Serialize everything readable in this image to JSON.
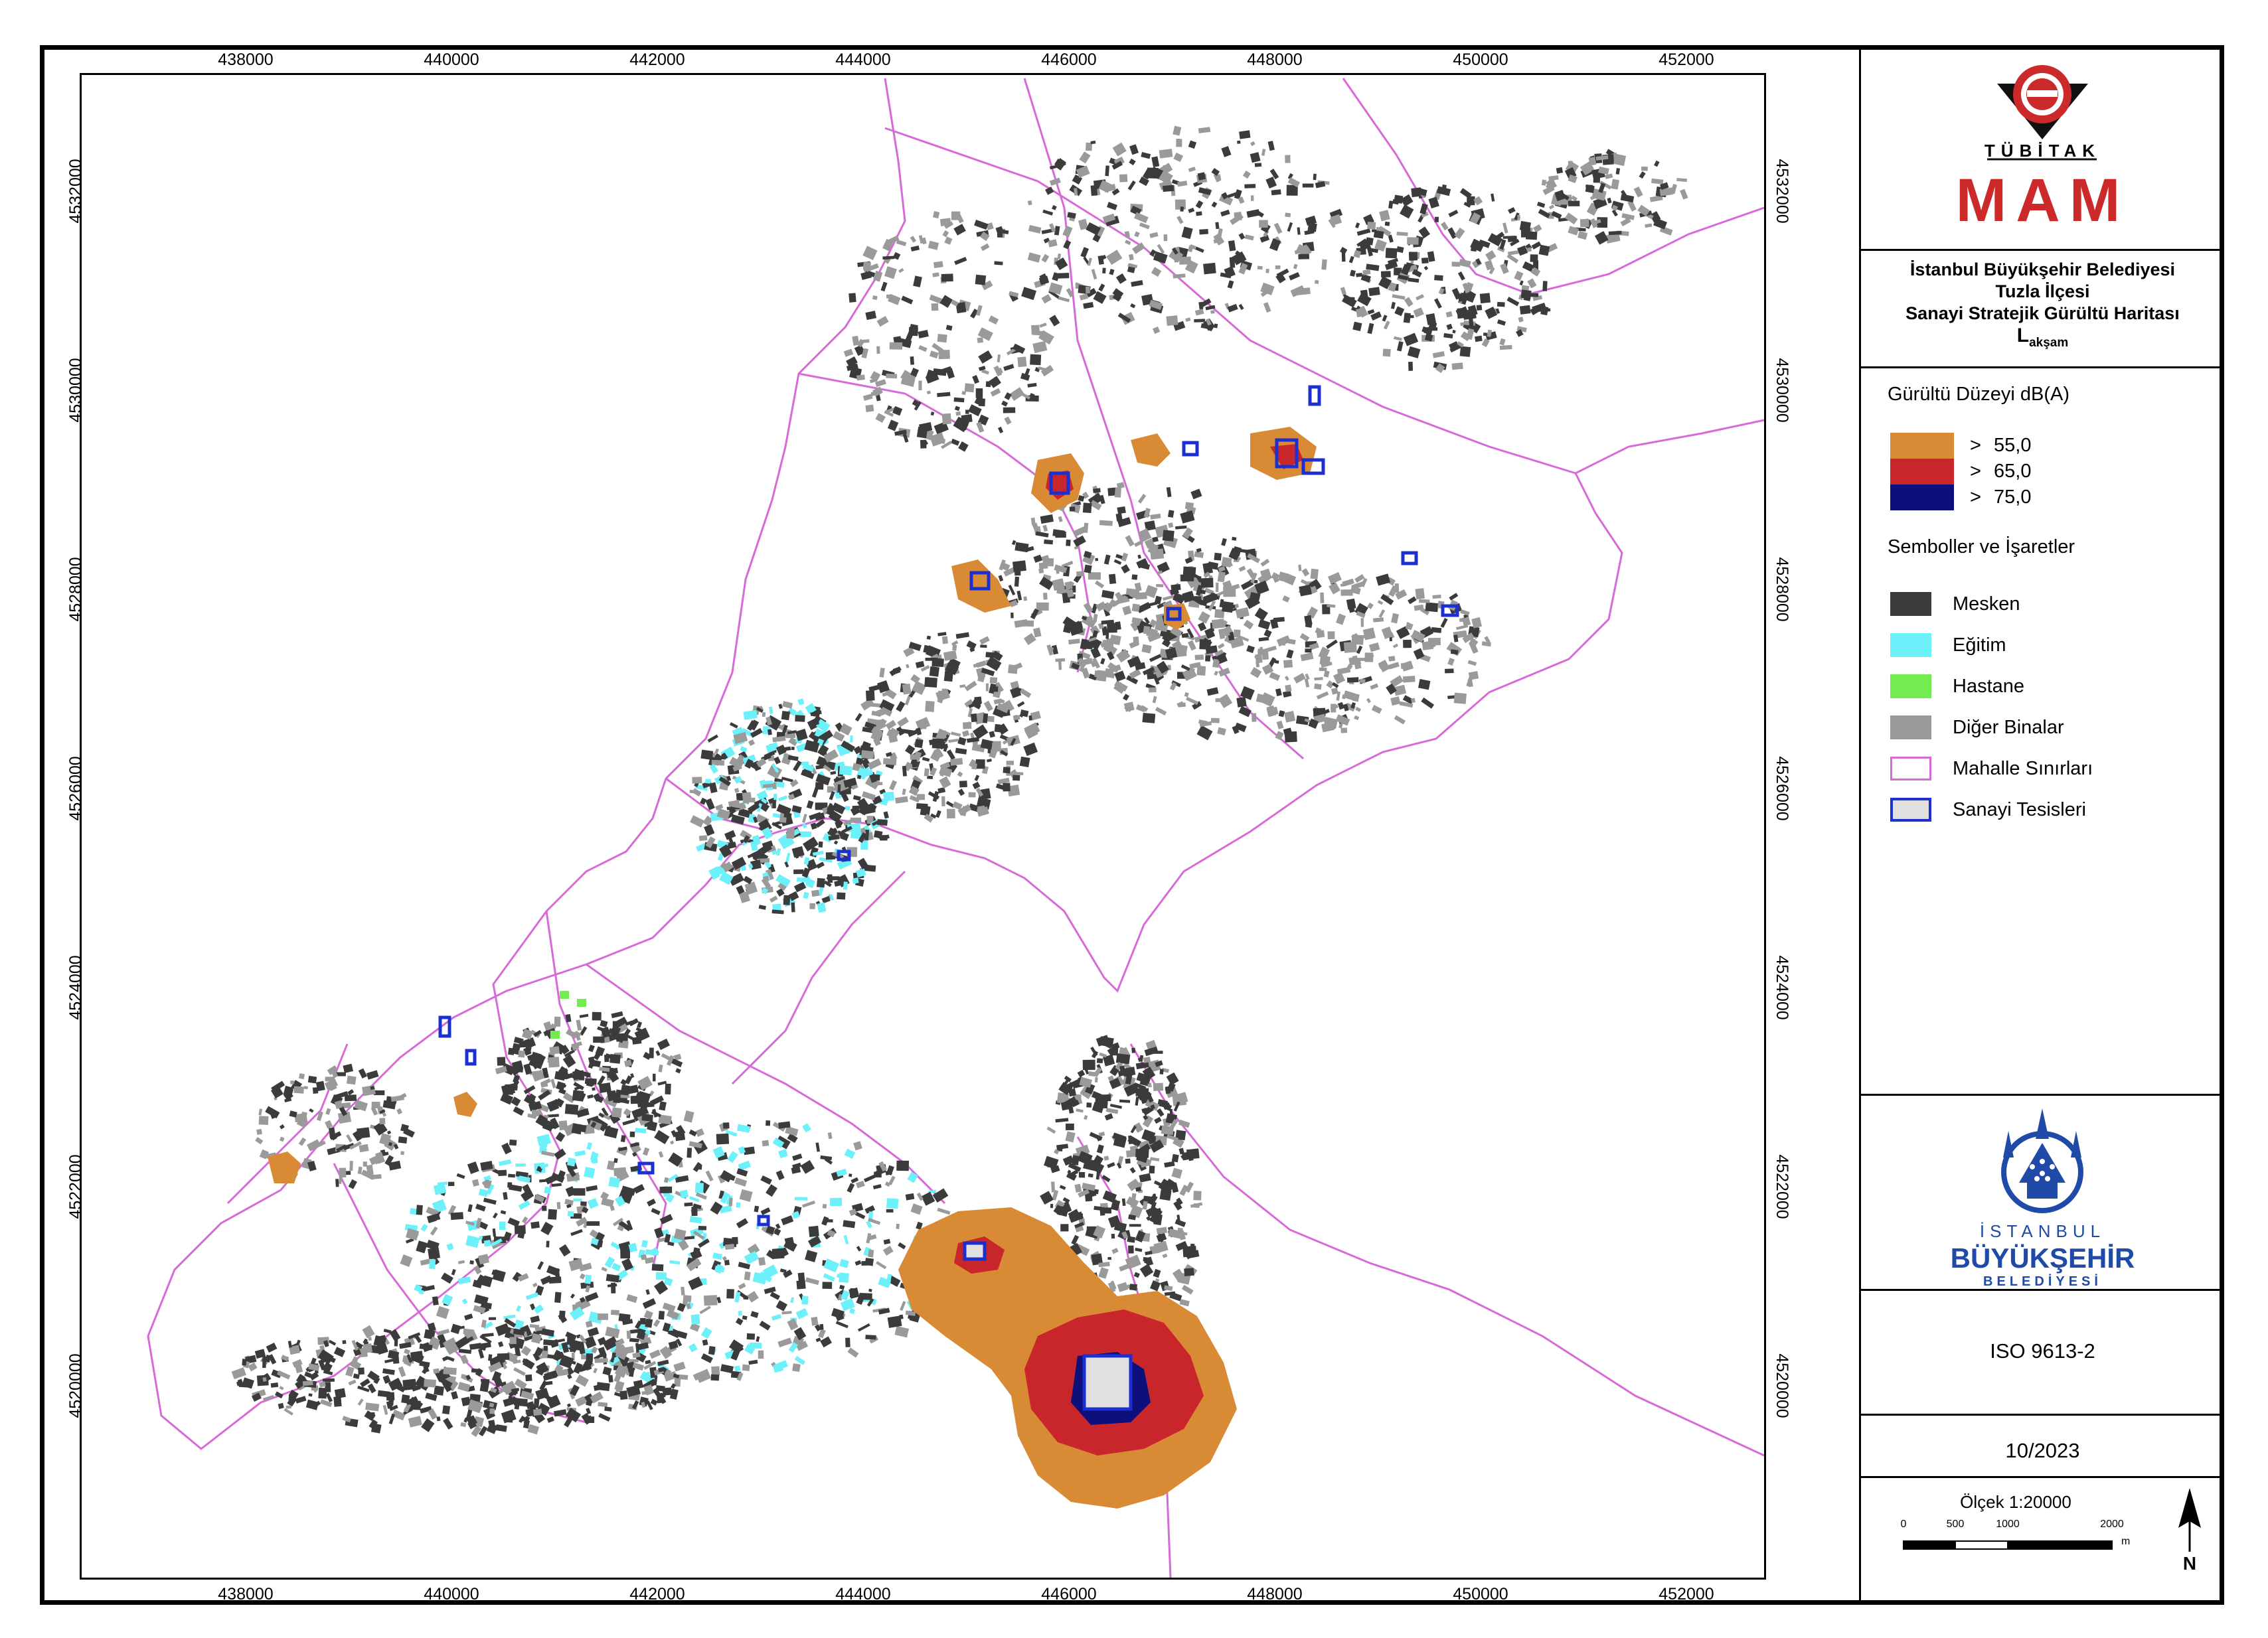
{
  "map": {
    "x_ticks": [
      "438000",
      "440000",
      "442000",
      "444000",
      "446000",
      "448000",
      "450000",
      "452000"
    ],
    "y_ticks": [
      "4532000",
      "4530000",
      "4528000",
      "4526000",
      "4524000",
      "4522000",
      "4520000"
    ]
  },
  "header": {
    "org_text": "TÜBİTAK",
    "org_sub": "MAM"
  },
  "title": {
    "line1": "İstanbul Büyükşehir Belediyesi",
    "line2": "Tuzla İlçesi",
    "line3": "Sanayi Stratejik Gürültü Haritası",
    "indicator_main": "L",
    "indicator_sub": "akşam"
  },
  "legend": {
    "noise_title": "Gürültü Düzeyi dB(A)",
    "noise_classes": [
      {
        "symbol": ">",
        "value": "55,0",
        "color": "#d98a35"
      },
      {
        "symbol": ">",
        "value": "65,0",
        "color": "#c8262a"
      },
      {
        "symbol": ">",
        "value": "75,0",
        "color": "#0d0f7a"
      }
    ],
    "symbols_title": "Semboller ve İşaretler",
    "symbols": [
      {
        "label": "Mesken",
        "fill": "#3b3b3b",
        "stroke": "#3b3b3b"
      },
      {
        "label": "Eğitim",
        "fill": "#6cf0fa",
        "stroke": "#6cf0fa"
      },
      {
        "label": "Hastane",
        "fill": "#72ec4e",
        "stroke": "#72ec4e"
      },
      {
        "label": "Diğer Binalar",
        "fill": "#9a9a9a",
        "stroke": "#9a9a9a"
      },
      {
        "label": "Mahalle Sınırları",
        "fill": "#ffffff",
        "stroke": "#d86ad8"
      },
      {
        "label": "Sanayi Tesisleri",
        "fill": "#e0e0e0",
        "stroke": "#1c2fd0"
      }
    ]
  },
  "logo2": {
    "line1": "İSTANBUL",
    "line2": "BÜYÜKŞEHİR",
    "line3": "BELEDİYESİ"
  },
  "standard": "ISO 9613-2",
  "date": "10/2023",
  "scale": {
    "label": "Ölçek 1:20000",
    "ticks": [
      "0",
      "500",
      "1000",
      "2000"
    ],
    "unit": "m"
  },
  "north_label": "N",
  "colors": {
    "noise55": "#d98a35",
    "noise65": "#c8262a",
    "noise75": "#0d0f7a",
    "boundary": "#d86ad8",
    "industry": "#1c2fd0",
    "residential": "#3b3b3b",
    "other": "#9a9a9a",
    "education": "#6cf0fa",
    "hospital": "#72ec4e",
    "ibb_blue": "#1f4aa8",
    "mam_red": "#cc2a2a"
  }
}
